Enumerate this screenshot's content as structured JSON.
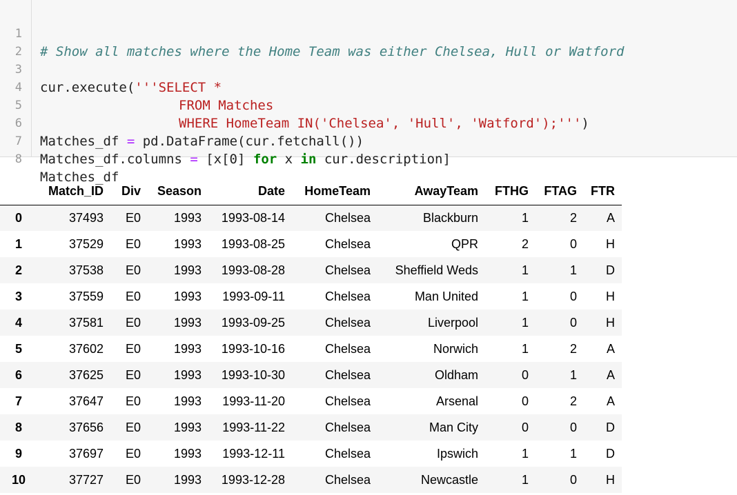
{
  "code_cell": {
    "line_numbers": [
      "1",
      "2",
      "3",
      "4",
      "5",
      "6",
      "7",
      "8"
    ],
    "comment": "# Show all matches where the Home Team was either Chelsea, Hull or Watford",
    "l3_a": "cur.execute(",
    "l3_b": "'''SELECT *",
    "l4": "FROM Matches",
    "l5": "WHERE HomeTeam IN('Chelsea', 'Hull', 'Watford');'''",
    "l5_close": ")",
    "l6_a": "Matches_df ",
    "l6_op": "=",
    "l6_b": " pd.DataFrame(cur.fetchall())",
    "l7_a": "Matches_df.columns ",
    "l7_op": "=",
    "l7_b": " [x[0] ",
    "l7_for": "for",
    "l7_c": " x ",
    "l7_in": "in",
    "l7_d": " cur.description]",
    "l8": "Matches_df"
  },
  "dataframe": {
    "headers": [
      "",
      "Match_ID",
      "Div",
      "Season",
      "Date",
      "HomeTeam",
      "AwayTeam",
      "FTHG",
      "FTAG",
      "FTR"
    ],
    "rows": [
      [
        "0",
        "37493",
        "E0",
        "1993",
        "1993-08-14",
        "Chelsea",
        "Blackburn",
        "1",
        "2",
        "A"
      ],
      [
        "1",
        "37529",
        "E0",
        "1993",
        "1993-08-25",
        "Chelsea",
        "QPR",
        "2",
        "0",
        "H"
      ],
      [
        "2",
        "37538",
        "E0",
        "1993",
        "1993-08-28",
        "Chelsea",
        "Sheffield Weds",
        "1",
        "1",
        "D"
      ],
      [
        "3",
        "37559",
        "E0",
        "1993",
        "1993-09-11",
        "Chelsea",
        "Man United",
        "1",
        "0",
        "H"
      ],
      [
        "4",
        "37581",
        "E0",
        "1993",
        "1993-09-25",
        "Chelsea",
        "Liverpool",
        "1",
        "0",
        "H"
      ],
      [
        "5",
        "37602",
        "E0",
        "1993",
        "1993-10-16",
        "Chelsea",
        "Norwich",
        "1",
        "2",
        "A"
      ],
      [
        "6",
        "37625",
        "E0",
        "1993",
        "1993-10-30",
        "Chelsea",
        "Oldham",
        "0",
        "1",
        "A"
      ],
      [
        "7",
        "37647",
        "E0",
        "1993",
        "1993-11-20",
        "Chelsea",
        "Arsenal",
        "0",
        "2",
        "A"
      ],
      [
        "8",
        "37656",
        "E0",
        "1993",
        "1993-11-22",
        "Chelsea",
        "Man City",
        "0",
        "0",
        "D"
      ],
      [
        "9",
        "37697",
        "E0",
        "1993",
        "1993-12-11",
        "Chelsea",
        "Ipswich",
        "1",
        "1",
        "D"
      ],
      [
        "10",
        "37727",
        "E0",
        "1993",
        "1993-12-28",
        "Chelsea",
        "Newcastle",
        "1",
        "0",
        "H"
      ]
    ]
  },
  "colors": {
    "comment": "#408080",
    "string": "#ba2121",
    "keyword": "#008000",
    "operator": "#aa22ff",
    "cell_background": "#f7f7f7",
    "row_stripe": "#f5f5f5"
  }
}
